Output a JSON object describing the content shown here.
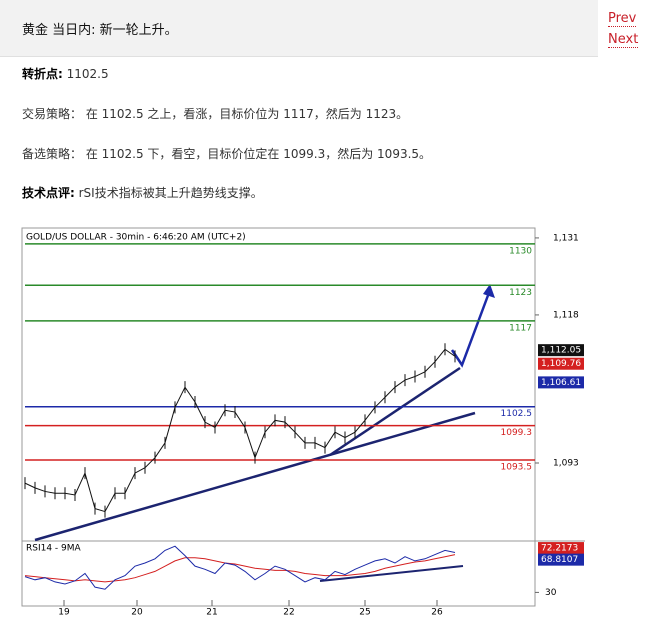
{
  "header": {
    "title": "黄金 当日内: 新一轮上升。",
    "prev": "Prev",
    "next": "Next"
  },
  "paragraphs": [
    {
      "label": "转折点:",
      "text": " 1102.5"
    },
    {
      "text": "交易策略： 在 1102.5 之上，看涨，目标价位为 1117，然后为 1123。"
    },
    {
      "text": "备选策略： 在 1102.5 下，看空，目标价位定在 1099.3，然后为 1093.5。"
    },
    {
      "label": "技术点评:",
      "text": " rSI技术指标被其上升趋势线支撑。"
    }
  ],
  "chart": {
    "title": "GOLD/US DOLLAR - 30min - 6:46:20 AM (UTC+2)",
    "ylim": [
      1080,
      1132
    ],
    "yticks": [
      {
        "value": 1131,
        "label": "1,131"
      },
      {
        "value": 1118,
        "label": "1,118"
      },
      {
        "value": 1093,
        "label": "1,093"
      }
    ],
    "levels": [
      {
        "value": 1130,
        "color": "#2a8a2a"
      },
      {
        "value": 1123,
        "color": "#2a8a2a"
      },
      {
        "value": 1117,
        "color": "#2a8a2a"
      },
      {
        "value": 1102.5,
        "color": "#1c2aa8"
      },
      {
        "value": 1099.3,
        "color": "#d42020"
      },
      {
        "value": 1093.5,
        "color": "#d42020"
      }
    ],
    "price": {
      "color": "#111111",
      "values": [
        1089.6,
        1088.8,
        1088.2,
        1087.9,
        1087.9,
        1087.6,
        1091.3,
        1085.3,
        1084.8,
        1087.9,
        1087.9,
        1091.3,
        1092.2,
        1093.9,
        1096.4,
        1102.4,
        1105.8,
        1103.3,
        1099.9,
        1099.0,
        1101.9,
        1101.6,
        1099.0,
        1093.9,
        1098.2,
        1100.2,
        1099.9,
        1098.2,
        1096.4,
        1096.4,
        1095.6,
        1098.2,
        1097.3,
        1098.2,
        1100.2,
        1102.4,
        1104.1,
        1105.8,
        1107.0,
        1107.6,
        1108.4,
        1110.1,
        1112.2,
        1111.0
      ]
    },
    "price_labels": [
      {
        "value": 1112.05,
        "label": "1,112.05",
        "color": "#111111"
      },
      {
        "value": 1109.76,
        "label": "1,109.76",
        "color": "#d42020"
      },
      {
        "value": 1106.61,
        "label": "1,106.61",
        "color": "#1c2aa8"
      }
    ],
    "rsi_title": "RSI14 - 9MA",
    "rsi_ylim": [
      18,
      78
    ],
    "rsi_yticks": [
      30
    ],
    "rsi": {
      "color": "#1c2aa8",
      "values": [
        45,
        42,
        44,
        40,
        38,
        41,
        48,
        35,
        33,
        42,
        46,
        55,
        58,
        62,
        70,
        74,
        65,
        55,
        52,
        48,
        58,
        56,
        50,
        42,
        48,
        55,
        52,
        46,
        40,
        44,
        42,
        50,
        47,
        52,
        56,
        60,
        62,
        58,
        64,
        60,
        62,
        66,
        70,
        68
      ]
    },
    "ma": {
      "color": "#d42020",
      "values": [
        46,
        45,
        44,
        43,
        42,
        41,
        42,
        41,
        40,
        41,
        42,
        44,
        47,
        50,
        55,
        60,
        63,
        63,
        62,
        60,
        58,
        57,
        55,
        53,
        52,
        51,
        51,
        50,
        48,
        47,
        46,
        46,
        46,
        47,
        48,
        50,
        53,
        55,
        57,
        59,
        60,
        62,
        64,
        66
      ]
    },
    "rsi_labels": [
      {
        "value": 72.2173,
        "label": "72.2173",
        "color": "#d42020"
      },
      {
        "value": 68.8107,
        "label": "68.8107",
        "color": "#1c2aa8"
      }
    ],
    "x_labels": [
      "19",
      "20",
      "21",
      "22",
      "25",
      "26"
    ]
  }
}
